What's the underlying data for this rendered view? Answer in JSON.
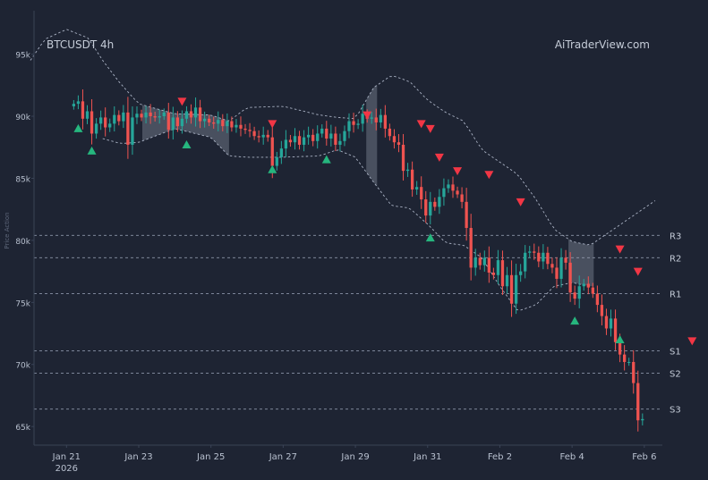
{
  "chart_data": {
    "type": "candlestick",
    "title": "BTCUSDT 4h",
    "watermark": "AiTraderView.com",
    "ylabel": "Price Action",
    "ylim": [
      63500,
      98500
    ],
    "xlim": [
      -0.9,
      16.5
    ],
    "y_ticks": [
      {
        "value": 95000,
        "label": "95k"
      },
      {
        "value": 90000,
        "label": "90k"
      },
      {
        "value": 85000,
        "label": "85k"
      },
      {
        "value": 80000,
        "label": "80k"
      },
      {
        "value": 75000,
        "label": "75k"
      },
      {
        "value": 70000,
        "label": "70k"
      },
      {
        "value": 65000,
        "label": "65k"
      }
    ],
    "x_ticks": [
      {
        "day": 0,
        "label": "Jan 21",
        "sublabel": "2026"
      },
      {
        "day": 2,
        "label": "Jan 23"
      },
      {
        "day": 4,
        "label": "Jan 25"
      },
      {
        "day": 6,
        "label": "Jan 27"
      },
      {
        "day": 8,
        "label": "Jan 29"
      },
      {
        "day": 10,
        "label": "Jan 31"
      },
      {
        "day": 12,
        "label": "Feb 2"
      },
      {
        "day": 14,
        "label": "Feb 4"
      },
      {
        "day": 16,
        "label": "Feb 6"
      }
    ],
    "levels": [
      {
        "name": "R3",
        "value": 80400
      },
      {
        "name": "R2",
        "value": 78600
      },
      {
        "name": "R1",
        "value": 75700
      },
      {
        "name": "S1",
        "value": 71100
      },
      {
        "name": "S2",
        "value": 69300
      },
      {
        "name": "S3",
        "value": 66400
      }
    ],
    "closes": [
      91000,
      91200,
      89800,
      90400,
      88600,
      89400,
      89900,
      89100,
      89400,
      90100,
      89600,
      90300,
      87700,
      89900,
      90200,
      89900,
      90300,
      90000,
      89900,
      90000,
      90300,
      88900,
      89900,
      89200,
      89800,
      90400,
      89900,
      90700,
      89600,
      89800,
      89500,
      89400,
      89700,
      89200,
      89600,
      89100,
      89300,
      89000,
      88900,
      88800,
      88400,
      88300,
      88500,
      88300,
      86000,
      86700,
      87400,
      88100,
      87900,
      88400,
      87700,
      88300,
      88500,
      88000,
      88600,
      89000,
      88200,
      88600,
      87700,
      88000,
      88800,
      89600,
      89300,
      89400,
      90200,
      89800,
      89900,
      89500,
      90100,
      89000,
      88400,
      87900,
      87700,
      85600,
      85700,
      84100,
      84300,
      83300,
      82000,
      83100,
      82700,
      83500,
      84200,
      84500,
      84000,
      83700,
      83100,
      81000,
      77800,
      78600,
      78000,
      78600,
      77400,
      77200,
      78400,
      76300,
      77200,
      74900,
      77200,
      77500,
      79000,
      79100,
      79000,
      78300,
      79000,
      78100,
      77800,
      76900,
      78600,
      78200,
      75800,
      75300,
      76300,
      76500,
      76200,
      75700,
      74800,
      73900,
      72900,
      73700,
      71800,
      70800,
      70200,
      70200,
      68500,
      65500,
      65600
    ],
    "bands": {
      "upper": [
        [
          -1.0,
          94500
        ],
        [
          -0.6,
          96200
        ],
        [
          0.0,
          97000
        ],
        [
          0.6,
          96300
        ],
        [
          1.0,
          94500
        ],
        [
          1.5,
          92600
        ],
        [
          2.0,
          91000
        ],
        [
          3.0,
          90200
        ],
        [
          4.0,
          90100
        ],
        [
          4.5,
          89600
        ],
        [
          5.0,
          90700
        ],
        [
          6.0,
          90800
        ],
        [
          7.0,
          90100
        ],
        [
          7.5,
          89900
        ],
        [
          8.0,
          89800
        ],
        [
          8.5,
          92300
        ],
        [
          9.0,
          93300
        ],
        [
          9.5,
          92800
        ],
        [
          10.0,
          91300
        ],
        [
          10.5,
          90300
        ],
        [
          11.0,
          89600
        ],
        [
          11.5,
          87300
        ],
        [
          12.0,
          86300
        ],
        [
          12.5,
          85300
        ],
        [
          13.0,
          83300
        ],
        [
          13.5,
          80900
        ],
        [
          14.0,
          79900
        ],
        [
          14.5,
          79600
        ],
        [
          15.0,
          80600
        ],
        [
          15.5,
          81600
        ],
        [
          16.0,
          82600
        ],
        [
          16.3,
          83200
        ]
      ],
      "lower": [
        [
          1.0,
          88200
        ],
        [
          1.5,
          87800
        ],
        [
          2.0,
          87900
        ],
        [
          3.0,
          89000
        ],
        [
          4.0,
          88300
        ],
        [
          4.5,
          86800
        ],
        [
          5.0,
          86700
        ],
        [
          6.0,
          86700
        ],
        [
          7.0,
          86800
        ],
        [
          7.5,
          87300
        ],
        [
          8.0,
          86700
        ],
        [
          8.5,
          84700
        ],
        [
          9.0,
          82800
        ],
        [
          9.5,
          82600
        ],
        [
          10.0,
          81300
        ],
        [
          10.5,
          79800
        ],
        [
          11.0,
          79600
        ],
        [
          11.5,
          78600
        ],
        [
          12.0,
          76300
        ],
        [
          12.5,
          74300
        ],
        [
          13.0,
          74800
        ],
        [
          13.5,
          76300
        ],
        [
          14.0,
          76600
        ],
        [
          14.5,
          76300
        ]
      ]
    },
    "shaded_zones": [
      [
        2.1,
        4.5
      ],
      [
        8.3,
        8.6
      ],
      [
        13.9,
        14.6
      ]
    ],
    "buy_signals": [
      {
        "i": 1,
        "value": 89000
      },
      {
        "i": 4,
        "value": 87200
      },
      {
        "i": 25,
        "value": 87700
      },
      {
        "i": 44,
        "value": 85700
      },
      {
        "i": 56,
        "value": 86500
      },
      {
        "i": 79,
        "value": 80200
      },
      {
        "i": 111,
        "value": 73500
      },
      {
        "i": 121,
        "value": 72000
      }
    ],
    "sell_signals": [
      {
        "i": 24,
        "value": 91200
      },
      {
        "i": 44,
        "value": 89400
      },
      {
        "i": 65,
        "value": 90100
      },
      {
        "i": 77,
        "value": 89400
      },
      {
        "i": 79,
        "value": 89000
      },
      {
        "i": 81,
        "value": 86700
      },
      {
        "i": 85,
        "value": 85600
      },
      {
        "i": 92,
        "value": 85300
      },
      {
        "i": 99,
        "value": 83100
      },
      {
        "i": 121,
        "value": 79300
      },
      {
        "i": 125,
        "value": 77500
      },
      {
        "i": 137,
        "value": 71900
      }
    ],
    "colors": {
      "background": "#1e2433",
      "bull": "#26a69a",
      "bear": "#ef5350",
      "buy": "#26b67e",
      "sell": "#f23645",
      "band": "#aab2c4",
      "level": "#8a93a6",
      "zone": "#9aa2b1",
      "axis_text": "#b8c0cf",
      "axis_line": "#3a4356"
    }
  }
}
